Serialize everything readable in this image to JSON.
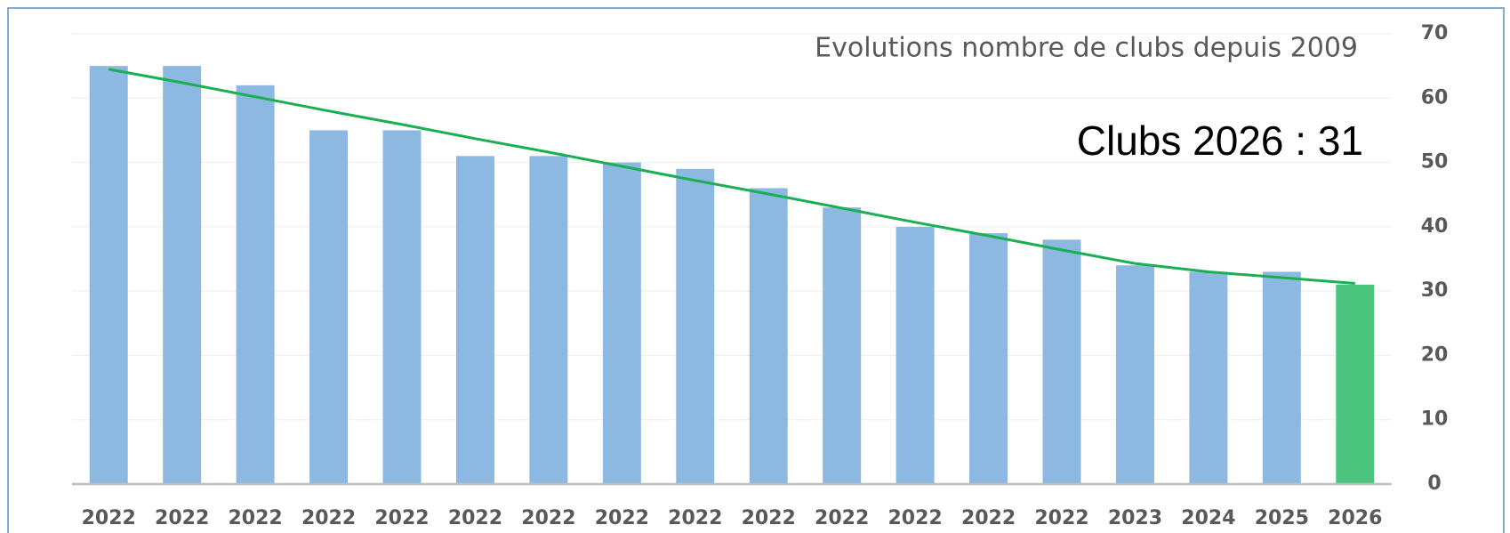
{
  "chart_data": {
    "type": "bar",
    "title": "Evolutions nombre de  clubs  depuis 2009",
    "annotation": "Clubs 2026 : 31",
    "categories": [
      "2022",
      "2022",
      "2022",
      "2022",
      "2022",
      "2022",
      "2022",
      "2022",
      "2022",
      "2022",
      "2022",
      "2022",
      "2022",
      "2022",
      "2023",
      "2024",
      "2025",
      "2026"
    ],
    "values": [
      65,
      65,
      62,
      55,
      55,
      51,
      51,
      50,
      49,
      46,
      43,
      40,
      39,
      38,
      34,
      33,
      33,
      31
    ],
    "colors": [
      "#8db8e2",
      "#8db8e2",
      "#8db8e2",
      "#8db8e2",
      "#8db8e2",
      "#8db8e2",
      "#8db8e2",
      "#8db8e2",
      "#8db8e2",
      "#8db8e2",
      "#8db8e2",
      "#8db8e2",
      "#8db8e2",
      "#8db8e2",
      "#8db8e2",
      "#8db8e2",
      "#8db8e2",
      "#4cc57e"
    ],
    "trend": {
      "color": "#1aaf50",
      "values": [
        64.5,
        62.4,
        60.2,
        58.0,
        55.9,
        53.7,
        51.6,
        49.4,
        47.2,
        45.1,
        42.9,
        40.7,
        38.6,
        36.4,
        34.3,
        33.0,
        32.1,
        31.2
      ]
    },
    "ylim": [
      0,
      70
    ],
    "yticks": [
      0,
      10,
      20,
      30,
      40,
      50,
      60,
      70
    ],
    "grid": true,
    "y_axis_side": "right"
  }
}
